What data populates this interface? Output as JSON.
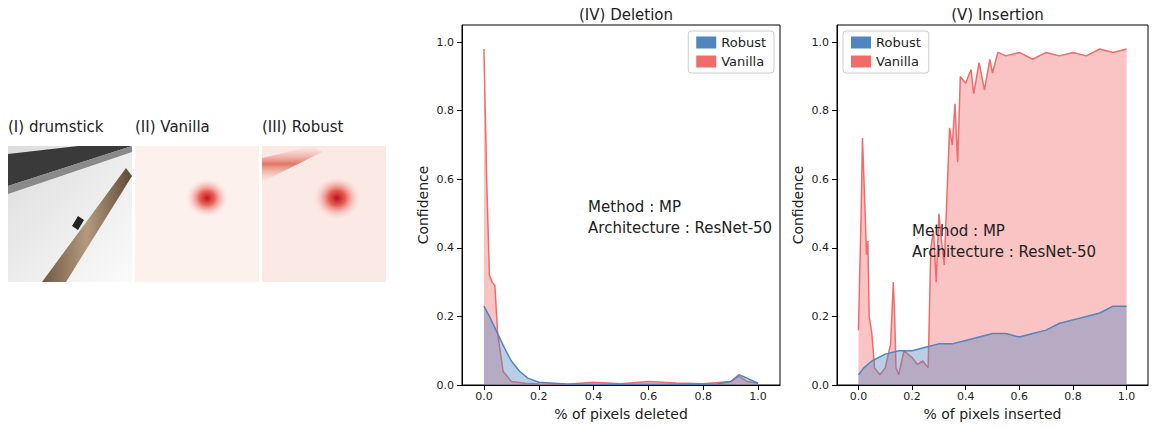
{
  "panels": [
    {
      "label": "(I) drumstick"
    },
    {
      "label": "(II) Vanilla"
    },
    {
      "label": "(III) Robust"
    }
  ],
  "chart_data": [
    {
      "type": "area",
      "title": "(IV) Deletion",
      "x_label": "% of pixels deleted",
      "y_label": "Confidence",
      "annotations": [
        "Method : MP",
        "Architecture : ResNet-50"
      ],
      "xlim": [
        -0.08,
        1.08
      ],
      "ylim": [
        0,
        1.05
      ],
      "xticks": [
        {
          "value": 0,
          "label": "0.0"
        },
        {
          "value": 0.2,
          "label": "0.2"
        },
        {
          "value": 0.4,
          "label": "0.4"
        },
        {
          "value": 0.6,
          "label": "0.6"
        },
        {
          "value": 0.8,
          "label": "0.8"
        },
        {
          "value": 1,
          "label": "1.0"
        }
      ],
      "yticks": [
        {
          "value": 0,
          "label": "0.0"
        },
        {
          "value": 0.2,
          "label": "0.2"
        },
        {
          "value": 0.4,
          "label": "0.4"
        },
        {
          "value": 0.6,
          "label": "0.6"
        },
        {
          "value": 0.8,
          "label": "0.8"
        },
        {
          "value": 1,
          "label": "1.0"
        }
      ],
      "grid": false,
      "legend": "upper right",
      "series": [
        {
          "name": "Robust",
          "color": "#4f86c0",
          "x": [
            0,
            0.02,
            0.05,
            0.08,
            0.1,
            0.13,
            0.16,
            0.2,
            0.3,
            0.5,
            0.7,
            0.85,
            0.9,
            0.93,
            0.96,
            1.0
          ],
          "values": [
            0.23,
            0.2,
            0.15,
            0.1,
            0.07,
            0.04,
            0.02,
            0.008,
            0.003,
            0.002,
            0.002,
            0.003,
            0.01,
            0.03,
            0.02,
            0.005
          ]
        },
        {
          "name": "Vanilla",
          "color": "#f26b6b",
          "x": [
            0,
            0.01,
            0.02,
            0.03,
            0.04,
            0.05,
            0.07,
            0.1,
            0.15,
            0.2,
            0.3,
            0.4,
            0.5,
            0.6,
            0.7,
            0.8,
            0.9,
            0.93,
            0.96,
            1.0
          ],
          "values": [
            0.98,
            0.6,
            0.32,
            0.3,
            0.29,
            0.15,
            0.04,
            0.01,
            0.005,
            0.003,
            0.002,
            0.008,
            0.004,
            0.01,
            0.006,
            0.004,
            0.01,
            0.025,
            0.01,
            0.005
          ]
        }
      ]
    },
    {
      "type": "area",
      "title": "(V) Insertion",
      "x_label": "% of pixels inserted",
      "y_label": "Confidence",
      "annotations": [
        "Method : MP",
        "Architecture : ResNet-50"
      ],
      "xlim": [
        -0.08,
        1.08
      ],
      "ylim": [
        0,
        1.05
      ],
      "xticks": [
        {
          "value": 0,
          "label": "0.0"
        },
        {
          "value": 0.2,
          "label": "0.2"
        },
        {
          "value": 0.4,
          "label": "0.4"
        },
        {
          "value": 0.6,
          "label": "0.6"
        },
        {
          "value": 0.8,
          "label": "0.8"
        },
        {
          "value": 1,
          "label": "1.0"
        }
      ],
      "yticks": [
        {
          "value": 0,
          "label": "0.0"
        },
        {
          "value": 0.2,
          "label": "0.2"
        },
        {
          "value": 0.4,
          "label": "0.4"
        },
        {
          "value": 0.6,
          "label": "0.6"
        },
        {
          "value": 0.8,
          "label": "0.8"
        },
        {
          "value": 1,
          "label": "1.0"
        }
      ],
      "grid": false,
      "legend": "upper left",
      "series": [
        {
          "name": "Robust",
          "color": "#4f86c0",
          "x": [
            0,
            0.02,
            0.05,
            0.1,
            0.15,
            0.2,
            0.25,
            0.3,
            0.35,
            0.4,
            0.45,
            0.5,
            0.55,
            0.6,
            0.65,
            0.7,
            0.75,
            0.8,
            0.85,
            0.9,
            0.95,
            1.0
          ],
          "values": [
            0.03,
            0.05,
            0.07,
            0.09,
            0.1,
            0.1,
            0.11,
            0.12,
            0.12,
            0.13,
            0.14,
            0.15,
            0.15,
            0.14,
            0.15,
            0.16,
            0.18,
            0.19,
            0.2,
            0.21,
            0.23,
            0.23
          ]
        },
        {
          "name": "Vanilla",
          "color": "#f26b6b",
          "x": [
            0,
            0.01,
            0.015,
            0.025,
            0.03,
            0.035,
            0.04,
            0.05,
            0.06,
            0.08,
            0.1,
            0.12,
            0.13,
            0.135,
            0.14,
            0.15,
            0.17,
            0.2,
            0.22,
            0.24,
            0.26,
            0.27,
            0.28,
            0.29,
            0.3,
            0.31,
            0.32,
            0.33,
            0.34,
            0.35,
            0.36,
            0.37,
            0.38,
            0.4,
            0.42,
            0.43,
            0.45,
            0.47,
            0.49,
            0.5,
            0.52,
            0.55,
            0.6,
            0.65,
            0.7,
            0.75,
            0.8,
            0.85,
            0.9,
            0.95,
            1.0
          ],
          "values": [
            0.16,
            0.5,
            0.72,
            0.5,
            0.38,
            0.42,
            0.2,
            0.15,
            0.05,
            0.03,
            0.05,
            0.12,
            0.3,
            0.2,
            0.05,
            0.03,
            0.1,
            0.08,
            0.06,
            0.07,
            0.05,
            0.4,
            0.45,
            0.3,
            0.5,
            0.42,
            0.35,
            0.55,
            0.75,
            0.7,
            0.82,
            0.65,
            0.9,
            0.88,
            0.92,
            0.85,
            0.94,
            0.86,
            0.95,
            0.91,
            0.97,
            0.96,
            0.97,
            0.95,
            0.97,
            0.96,
            0.97,
            0.96,
            0.98,
            0.97,
            0.98
          ]
        }
      ]
    }
  ]
}
